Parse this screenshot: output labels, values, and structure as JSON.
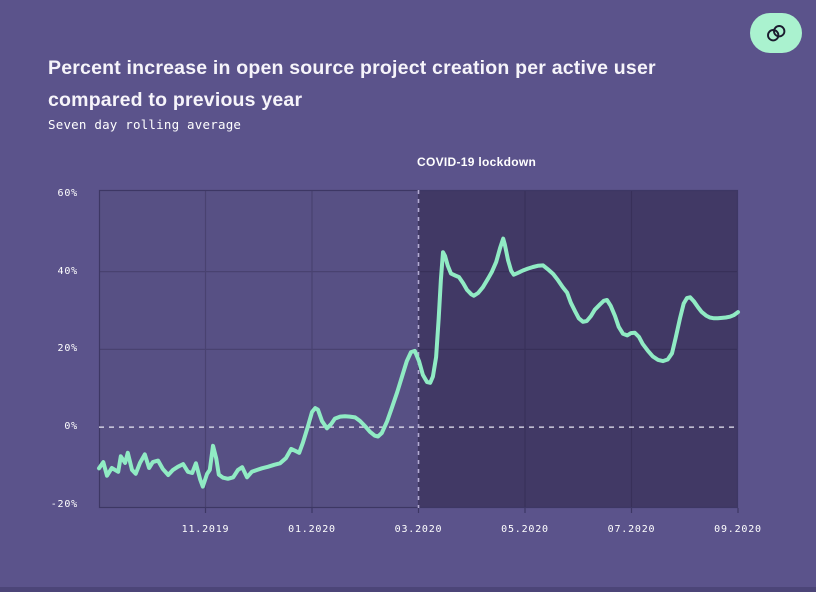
{
  "header": {
    "title_lines": [
      "Percent increase in open source project creation per active user",
      "compared to previous year"
    ],
    "subtitle": "Seven day rolling average"
  },
  "toolbar": {
    "link_button": {
      "icon": "link-rings-icon",
      "background": "#aaf2cf",
      "icon_color": "#1b1b2e"
    }
  },
  "chart_data": {
    "type": "line",
    "title": "Percent increase in open source project creation per active user compared to previous year",
    "subtitle": "Seven day rolling average",
    "x_axis": {
      "start": "09.2019",
      "end": "09.2020",
      "tick_labels": [
        "11.2019",
        "01.2020",
        "03.2020",
        "05.2020",
        "07.2020",
        "09.2020"
      ],
      "tick_months": [
        2,
        4,
        6,
        8,
        10,
        12
      ],
      "grid_months": [
        2,
        4,
        6,
        8,
        10
      ]
    },
    "y_axis": {
      "tick_labels": [
        "60%",
        "40%",
        "20%",
        "0%",
        "-20%"
      ],
      "tick_values": [
        60,
        40,
        20,
        0,
        -20
      ],
      "grid_values": [
        40,
        20
      ],
      "zero_line_value": 0,
      "ylim": [
        -20.8,
        61
      ]
    },
    "annotation": {
      "label": "COVID-19 lockdown",
      "x_month": 6,
      "date": "03.2020",
      "style": "dashed vertical line, darker shaded region to the right"
    },
    "colors": {
      "line": "#90ebc4",
      "plot_background": "#575084",
      "lockdown_shade": "#1e1634",
      "lockdown_shade_opacity": 0.38,
      "gridline": "#494270",
      "plot_border": "#3d3764",
      "zero_dash": "#e9e7f3",
      "lockdown_dash": "#b3abd2",
      "page_background": "#5b538b"
    },
    "legend": "none",
    "series": [
      {
        "name": "Percent increase vs previous year (7-day rolling avg)",
        "unit": "%",
        "x_unit": "months since 09.2019",
        "points": [
          [
            0.0,
            -10.6
          ],
          [
            0.08,
            -9.0
          ],
          [
            0.15,
            -12.5
          ],
          [
            0.24,
            -10.5
          ],
          [
            0.36,
            -11.5
          ],
          [
            0.41,
            -7.5
          ],
          [
            0.49,
            -9.2
          ],
          [
            0.54,
            -6.6
          ],
          [
            0.62,
            -11.0
          ],
          [
            0.69,
            -12.0
          ],
          [
            0.77,
            -9.2
          ],
          [
            0.86,
            -7.0
          ],
          [
            0.94,
            -10.5
          ],
          [
            1.01,
            -9.0
          ],
          [
            1.11,
            -8.6
          ],
          [
            1.2,
            -10.8
          ],
          [
            1.3,
            -12.3
          ],
          [
            1.39,
            -11.0
          ],
          [
            1.48,
            -10.2
          ],
          [
            1.58,
            -9.5
          ],
          [
            1.67,
            -11.5
          ],
          [
            1.75,
            -11.8
          ],
          [
            1.82,
            -9.3
          ],
          [
            1.9,
            -13.5
          ],
          [
            1.95,
            -15.3
          ],
          [
            2.03,
            -12.0
          ],
          [
            2.08,
            -11.0
          ],
          [
            2.14,
            -4.8
          ],
          [
            2.2,
            -8.0
          ],
          [
            2.25,
            -12.2
          ],
          [
            2.33,
            -13.0
          ],
          [
            2.42,
            -13.3
          ],
          [
            2.52,
            -12.9
          ],
          [
            2.61,
            -11.0
          ],
          [
            2.69,
            -10.3
          ],
          [
            2.78,
            -12.9
          ],
          [
            2.87,
            -11.5
          ],
          [
            2.97,
            -11.0
          ],
          [
            3.06,
            -10.6
          ],
          [
            3.17,
            -10.2
          ],
          [
            3.29,
            -9.7
          ],
          [
            3.4,
            -9.3
          ],
          [
            3.51,
            -8.0
          ],
          [
            3.61,
            -5.6
          ],
          [
            3.7,
            -6.2
          ],
          [
            3.76,
            -6.6
          ],
          [
            3.83,
            -4.0
          ],
          [
            3.92,
            0.0
          ],
          [
            4.0,
            3.9
          ],
          [
            4.06,
            4.9
          ],
          [
            4.11,
            4.5
          ],
          [
            4.19,
            1.5
          ],
          [
            4.28,
            -0.3
          ],
          [
            4.36,
            0.8
          ],
          [
            4.43,
            2.2
          ],
          [
            4.53,
            2.7
          ],
          [
            4.62,
            2.8
          ],
          [
            4.71,
            2.7
          ],
          [
            4.81,
            2.5
          ],
          [
            4.9,
            1.6
          ],
          [
            5.0,
            0.2
          ],
          [
            5.09,
            -1.2
          ],
          [
            5.18,
            -2.2
          ],
          [
            5.24,
            -2.4
          ],
          [
            5.31,
            -1.5
          ],
          [
            5.41,
            1.5
          ],
          [
            5.5,
            5.0
          ],
          [
            5.6,
            9.0
          ],
          [
            5.69,
            13.0
          ],
          [
            5.78,
            17.0
          ],
          [
            5.86,
            19.3
          ],
          [
            5.93,
            19.6
          ],
          [
            6.01,
            17.0
          ],
          [
            6.08,
            13.5
          ],
          [
            6.16,
            11.6
          ],
          [
            6.22,
            11.4
          ],
          [
            6.27,
            13.0
          ],
          [
            6.33,
            18.0
          ],
          [
            6.38,
            28.0
          ],
          [
            6.42,
            38.0
          ],
          [
            6.46,
            45.0
          ],
          [
            6.5,
            44.0
          ],
          [
            6.55,
            41.5
          ],
          [
            6.61,
            39.5
          ],
          [
            6.69,
            39.0
          ],
          [
            6.76,
            38.6
          ],
          [
            6.84,
            37.0
          ],
          [
            6.91,
            35.3
          ],
          [
            6.99,
            34.2
          ],
          [
            7.04,
            33.8
          ],
          [
            7.12,
            34.5
          ],
          [
            7.21,
            36.0
          ],
          [
            7.31,
            38.3
          ],
          [
            7.38,
            40.0
          ],
          [
            7.46,
            42.5
          ],
          [
            7.53,
            46.0
          ],
          [
            7.59,
            48.5
          ],
          [
            7.62,
            47.0
          ],
          [
            7.68,
            43.0
          ],
          [
            7.74,
            40.2
          ],
          [
            7.79,
            39.2
          ],
          [
            7.87,
            39.7
          ],
          [
            7.96,
            40.3
          ],
          [
            8.06,
            40.8
          ],
          [
            8.15,
            41.2
          ],
          [
            8.24,
            41.5
          ],
          [
            8.34,
            41.6
          ],
          [
            8.43,
            40.6
          ],
          [
            8.53,
            39.4
          ],
          [
            8.62,
            37.8
          ],
          [
            8.71,
            36.0
          ],
          [
            8.79,
            34.6
          ],
          [
            8.86,
            32.0
          ],
          [
            8.94,
            29.8
          ],
          [
            9.01,
            28.0
          ],
          [
            9.09,
            27.1
          ],
          [
            9.16,
            27.3
          ],
          [
            9.24,
            28.6
          ],
          [
            9.31,
            30.2
          ],
          [
            9.41,
            31.6
          ],
          [
            9.48,
            32.5
          ],
          [
            9.54,
            32.7
          ],
          [
            9.61,
            31.2
          ],
          [
            9.69,
            28.6
          ],
          [
            9.76,
            25.8
          ],
          [
            9.84,
            24.0
          ],
          [
            9.92,
            23.6
          ],
          [
            9.99,
            24.2
          ],
          [
            10.06,
            24.3
          ],
          [
            10.14,
            23.2
          ],
          [
            10.21,
            21.4
          ],
          [
            10.31,
            19.6
          ],
          [
            10.4,
            18.2
          ],
          [
            10.5,
            17.3
          ],
          [
            10.59,
            17.0
          ],
          [
            10.68,
            17.4
          ],
          [
            10.76,
            19.0
          ],
          [
            10.83,
            23.0
          ],
          [
            10.91,
            28.0
          ],
          [
            10.98,
            31.8
          ],
          [
            11.04,
            33.2
          ],
          [
            11.1,
            33.4
          ],
          [
            11.17,
            32.4
          ],
          [
            11.25,
            30.8
          ],
          [
            11.32,
            29.6
          ],
          [
            11.4,
            28.7
          ],
          [
            11.47,
            28.2
          ],
          [
            11.55,
            28.0
          ],
          [
            11.62,
            28.0
          ],
          [
            11.7,
            28.1
          ],
          [
            11.77,
            28.2
          ],
          [
            11.85,
            28.4
          ],
          [
            11.92,
            28.8
          ],
          [
            12.0,
            29.6
          ]
        ]
      }
    ]
  }
}
